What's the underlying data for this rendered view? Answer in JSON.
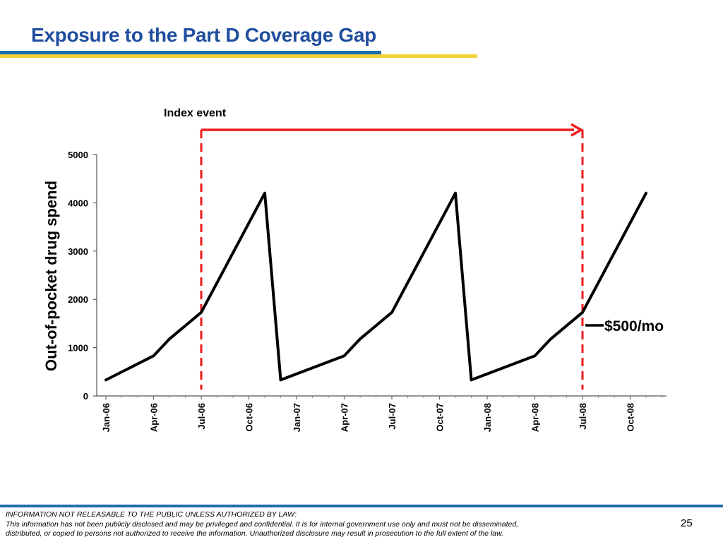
{
  "slide": {
    "title": "Exposure to the Part D Coverage Gap",
    "page_number": "25"
  },
  "footer": {
    "line1": "INFORMATION NOT RELEASABLE TO THE PUBLIC UNLESS AUTHORIZED BY LAW:",
    "line2": "This information has not been publicly disclosed and may be privileged and confidential.  It is for internal government use only and must not be disseminated,",
    "line3": "distributed, or copied to persons not authorized to receive the information.  Unauthorized disclosure may result in prosecution to the full extent of the law."
  },
  "colors": {
    "title": "#1f4e9e",
    "rule_blue": "#1c6fab",
    "rule_gold": "#f5d33a",
    "series": "#000000",
    "index_event": "#ee1c1c"
  },
  "chart_data": {
    "type": "line",
    "title": "",
    "xlabel": "",
    "ylabel": "Out-of-pocket drug spend",
    "ylim": [
      0,
      5000
    ],
    "yticks": [
      "0",
      "1000",
      "2000",
      "3000",
      "4000",
      "5000"
    ],
    "xticks": [
      "Jan-06",
      "Apr-06",
      "Jul-06",
      "Oct-06",
      "Jan-07",
      "Apr-07",
      "Jul-07",
      "Oct-07",
      "Jan-08",
      "Apr-08",
      "Jul-08",
      "Oct-08"
    ],
    "grid": false,
    "legend": "none",
    "series": [
      {
        "x": [
          "Jan-06",
          "Apr-06",
          "May-06",
          "Jul-06",
          "Nov-06",
          "Dec-06",
          "Apr-07",
          "May-07",
          "Jul-07",
          "Nov-07",
          "Dec-07",
          "Apr-08",
          "May-08",
          "Jul-08",
          "Nov-08"
        ],
        "values": [
          330,
          830,
          1180,
          1730,
          4200,
          330,
          830,
          1180,
          1730,
          4200,
          330,
          830,
          1180,
          1730,
          4200
        ]
      }
    ],
    "annotations": {
      "index_event_label": "Index event",
      "index_event_start": "Jul-06",
      "index_event_end": "Jul-08",
      "rate_label": "$500/mo",
      "rate_point": "Jul-08"
    }
  }
}
